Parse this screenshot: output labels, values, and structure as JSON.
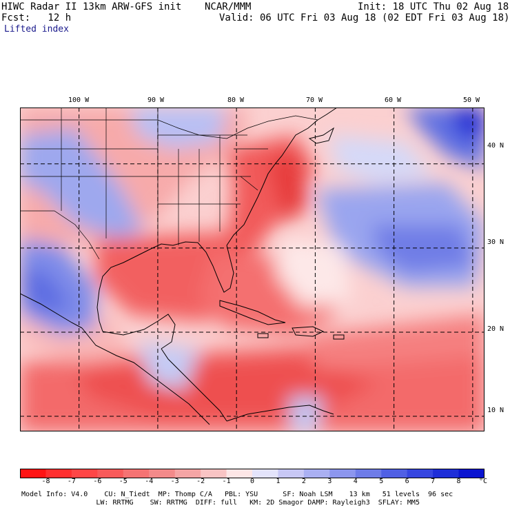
{
  "header": {
    "title": "HIWC Radar II 13km ARW-GFS init    NCAR/MMM",
    "init": "Init: 18 UTC Thu 02 Aug 18",
    "fcst": "Fcst:   12 h",
    "valid": "Valid: 06 UTC Fri 03 Aug 18 (02 EDT Fri 03 Aug 18)",
    "field": "Lifted index"
  },
  "map": {
    "lon_labels": [
      "100 W",
      "90 W",
      "80 W",
      "70 W",
      "60 W",
      "50 W"
    ],
    "lat_labels": [
      "40 N",
      "30 N",
      "20 N",
      "10 N"
    ],
    "lon_values": [
      -100,
      -90,
      -80,
      -70,
      -60,
      -50
    ],
    "lat_values": [
      40,
      30,
      20,
      10
    ],
    "lon_range": [
      -107.5,
      -48.5
    ],
    "lat_range": [
      8.2,
      46.7
    ]
  },
  "colorbar": {
    "ticks": [
      "-8",
      "-7",
      "-6",
      "-5",
      "-4",
      "-3",
      "-2",
      "-1",
      "0",
      "1",
      "2",
      "3",
      "4",
      "5",
      "6",
      "7",
      "8"
    ],
    "unit": "°C",
    "colors": [
      "#ff1414",
      "#ff3030",
      "#ff4646",
      "#f85a5a",
      "#f57373",
      "#f38a8a",
      "#f5a5a5",
      "#f9c4c4",
      "#fde6e6",
      "#e4e4fb",
      "#c8c8f5",
      "#aab0f2",
      "#8c96ee",
      "#6e7ce8",
      "#5060e4",
      "#3646e0",
      "#1e2ed8",
      "#0a14d0"
    ]
  },
  "footer": {
    "line1": "Model Info: V4.0    CU: N_Tiedt  MP: Thomp C/A   PBL: YSU      SF: Noah LSM    13 km   51 levels  96 sec",
    "line2": "                  LW: RRTMG    SW: RRTMG  DIFF: full   KM: 2D Smagor DAMP: Rayleigh3  SFLAY: MM5"
  }
}
